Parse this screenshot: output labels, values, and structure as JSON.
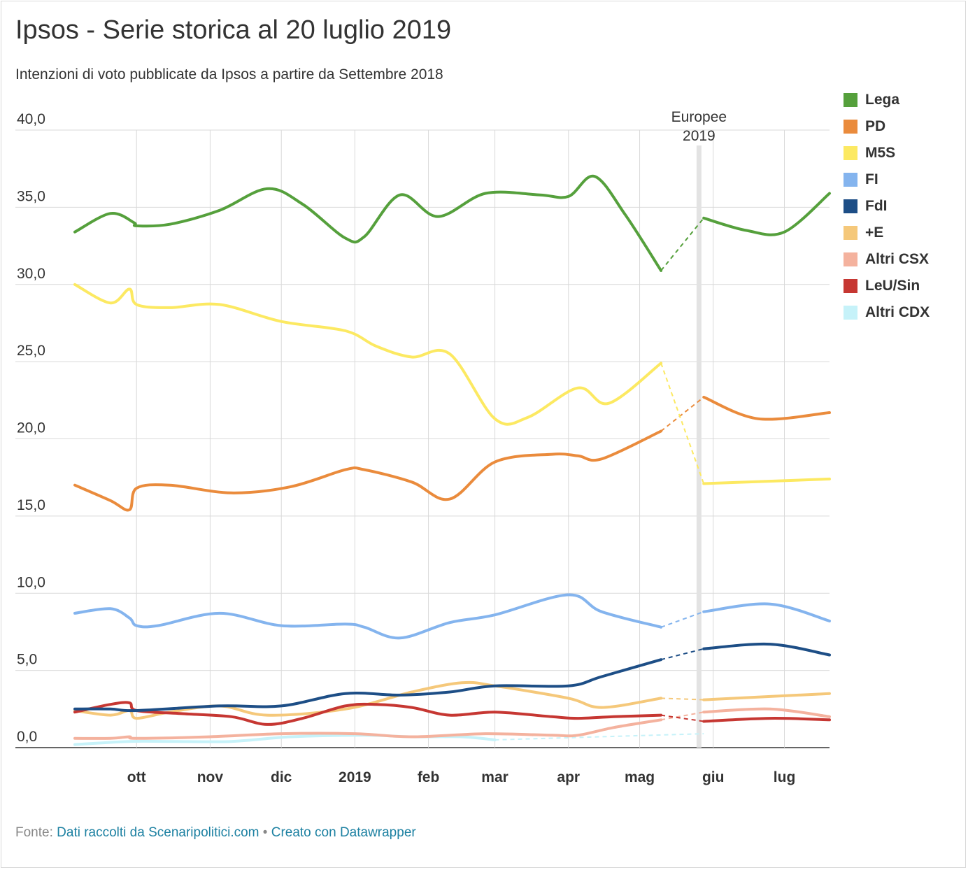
{
  "title": "Ipsos - Serie storica al 20 luglio 2019",
  "subtitle": "Intenzioni di voto pubblicate da Ipsos a partire da Settembre 2018",
  "footer": {
    "prefix": "Fonte:",
    "source_link": "Dati raccolti da Scenaripolitici.com",
    "separator": "•",
    "tool_link": "Creato con Datawrapper"
  },
  "chart_data": {
    "type": "line",
    "ylim": [
      0,
      40
    ],
    "y_ticks": [
      "40,0",
      "35,0",
      "30,0",
      "25,0",
      "20,0",
      "15,0",
      "10,0",
      "5,0",
      "0,0"
    ],
    "y_tick_values": [
      40,
      35,
      30,
      25,
      20,
      15,
      10,
      5,
      0
    ],
    "x_range": [
      "2018-09-05",
      "2019-07-20"
    ],
    "x_ticks": [
      {
        "label": "ott",
        "date": "2018-10-01"
      },
      {
        "label": "nov",
        "date": "2018-11-01"
      },
      {
        "label": "dic",
        "date": "2018-12-01"
      },
      {
        "label": "2019",
        "date": "2019-01-01"
      },
      {
        "label": "feb",
        "date": "2019-02-01"
      },
      {
        "label": "mar",
        "date": "2019-03-01"
      },
      {
        "label": "apr",
        "date": "2019-04-01"
      },
      {
        "label": "mag",
        "date": "2019-05-01"
      },
      {
        "label": "giu",
        "date": "2019-06-01"
      },
      {
        "label": "lug",
        "date": "2019-07-01"
      }
    ],
    "grid": true,
    "legend_position": "right",
    "annotation": {
      "label_line1": "Europee",
      "label_line2": "2019",
      "date": "2019-05-26"
    },
    "dashed_gap": [
      "2019-05-10",
      "2019-05-28"
    ],
    "series": [
      {
        "name": "Lega",
        "color": "#55a03c",
        "points": [
          [
            "2018-09-05",
            33.4
          ],
          [
            "2018-09-20",
            34.6
          ],
          [
            "2018-09-30",
            34.0
          ],
          [
            "2018-10-01",
            33.8
          ],
          [
            "2018-10-15",
            33.9
          ],
          [
            "2018-11-05",
            34.8
          ],
          [
            "2018-11-25",
            36.2
          ],
          [
            "2018-12-10",
            35.2
          ],
          [
            "2018-12-28",
            33.0
          ],
          [
            "2019-01-05",
            33.1
          ],
          [
            "2019-01-20",
            35.8
          ],
          [
            "2019-02-05",
            34.4
          ],
          [
            "2019-02-25",
            35.9
          ],
          [
            "2019-03-20",
            35.8
          ],
          [
            "2019-04-01",
            35.7
          ],
          [
            "2019-04-12",
            37.0
          ],
          [
            "2019-04-25",
            34.5
          ],
          [
            "2019-05-10",
            30.9
          ],
          [
            "2019-05-28",
            34.3
          ],
          [
            "2019-06-15",
            33.5
          ],
          [
            "2019-07-01",
            33.4
          ],
          [
            "2019-07-20",
            35.9
          ]
        ]
      },
      {
        "name": "PD",
        "color": "#ea8b3c",
        "points": [
          [
            "2018-09-05",
            17.0
          ],
          [
            "2018-09-20",
            16.0
          ],
          [
            "2018-09-28",
            15.4
          ],
          [
            "2018-10-01",
            16.8
          ],
          [
            "2018-10-15",
            17.0
          ],
          [
            "2018-11-10",
            16.5
          ],
          [
            "2018-12-05",
            16.9
          ],
          [
            "2018-12-28",
            18.0
          ],
          [
            "2019-01-05",
            18.0
          ],
          [
            "2019-01-25",
            17.2
          ],
          [
            "2019-02-10",
            16.1
          ],
          [
            "2019-03-01",
            18.5
          ],
          [
            "2019-03-25",
            19.0
          ],
          [
            "2019-04-05",
            18.9
          ],
          [
            "2019-04-15",
            18.7
          ],
          [
            "2019-05-10",
            20.5
          ],
          [
            "2019-05-28",
            22.7
          ],
          [
            "2019-06-20",
            21.3
          ],
          [
            "2019-07-20",
            21.7
          ]
        ]
      },
      {
        "name": "M5S",
        "color": "#fce962",
        "points": [
          [
            "2018-09-05",
            30.0
          ],
          [
            "2018-09-20",
            28.8
          ],
          [
            "2018-09-28",
            29.7
          ],
          [
            "2018-10-01",
            28.7
          ],
          [
            "2018-10-15",
            28.5
          ],
          [
            "2018-11-05",
            28.7
          ],
          [
            "2018-12-01",
            27.6
          ],
          [
            "2018-12-28",
            27.0
          ],
          [
            "2019-01-10",
            26.0
          ],
          [
            "2019-01-25",
            25.3
          ],
          [
            "2019-02-10",
            25.5
          ],
          [
            "2019-03-01",
            21.3
          ],
          [
            "2019-03-15",
            21.4
          ],
          [
            "2019-04-05",
            23.3
          ],
          [
            "2019-04-18",
            22.3
          ],
          [
            "2019-05-10",
            24.9
          ],
          [
            "2019-05-28",
            17.1
          ],
          [
            "2019-07-20",
            17.4
          ]
        ]
      },
      {
        "name": "FI",
        "color": "#84b4ee",
        "points": [
          [
            "2018-09-05",
            8.7
          ],
          [
            "2018-09-20",
            9.0
          ],
          [
            "2018-09-28",
            8.4
          ],
          [
            "2018-10-01",
            7.9
          ],
          [
            "2018-10-10",
            7.9
          ],
          [
            "2018-11-05",
            8.7
          ],
          [
            "2018-12-01",
            7.9
          ],
          [
            "2018-12-28",
            8.0
          ],
          [
            "2019-01-05",
            7.8
          ],
          [
            "2019-01-20",
            7.1
          ],
          [
            "2019-02-10",
            8.1
          ],
          [
            "2019-03-01",
            8.6
          ],
          [
            "2019-04-01",
            9.9
          ],
          [
            "2019-04-15",
            8.8
          ],
          [
            "2019-05-10",
            7.8
          ],
          [
            "2019-05-28",
            8.8
          ],
          [
            "2019-06-25",
            9.3
          ],
          [
            "2019-07-20",
            8.2
          ]
        ]
      },
      {
        "name": "FdI",
        "color": "#1d4e86",
        "points": [
          [
            "2018-09-05",
            2.5
          ],
          [
            "2018-09-20",
            2.5
          ],
          [
            "2018-10-01",
            2.4
          ],
          [
            "2018-11-05",
            2.7
          ],
          [
            "2018-12-01",
            2.7
          ],
          [
            "2018-12-28",
            3.5
          ],
          [
            "2019-01-20",
            3.4
          ],
          [
            "2019-02-10",
            3.6
          ],
          [
            "2019-03-01",
            4.0
          ],
          [
            "2019-04-01",
            4.0
          ],
          [
            "2019-04-15",
            4.6
          ],
          [
            "2019-05-10",
            5.7
          ],
          [
            "2019-05-28",
            6.4
          ],
          [
            "2019-06-25",
            6.7
          ],
          [
            "2019-07-20",
            6.0
          ]
        ]
      },
      {
        "name": "+E",
        "color": "#f5c87a",
        "points": [
          [
            "2018-09-05",
            2.4
          ],
          [
            "2018-09-20",
            2.1
          ],
          [
            "2018-09-28",
            2.4
          ],
          [
            "2018-10-01",
            1.9
          ],
          [
            "2018-10-15",
            2.3
          ],
          [
            "2018-11-05",
            2.7
          ],
          [
            "2018-11-25",
            2.1
          ],
          [
            "2018-12-28",
            2.5
          ],
          [
            "2019-01-25",
            3.6
          ],
          [
            "2019-02-15",
            4.2
          ],
          [
            "2019-03-01",
            4.0
          ],
          [
            "2019-04-01",
            3.2
          ],
          [
            "2019-04-15",
            2.6
          ],
          [
            "2019-05-10",
            3.2
          ],
          [
            "2019-05-28",
            3.1
          ],
          [
            "2019-07-20",
            3.5
          ]
        ]
      },
      {
        "name": "Altri CSX",
        "color": "#f4b29e",
        "points": [
          [
            "2018-09-05",
            0.6
          ],
          [
            "2018-09-20",
            0.6
          ],
          [
            "2018-09-28",
            0.7
          ],
          [
            "2018-10-01",
            0.6
          ],
          [
            "2018-11-01",
            0.7
          ],
          [
            "2018-12-01",
            0.9
          ],
          [
            "2019-01-01",
            0.9
          ],
          [
            "2019-01-25",
            0.7
          ],
          [
            "2019-02-25",
            0.9
          ],
          [
            "2019-03-25",
            0.8
          ],
          [
            "2019-04-05",
            0.8
          ],
          [
            "2019-04-20",
            1.3
          ],
          [
            "2019-05-10",
            1.8
          ],
          [
            "2019-05-28",
            2.3
          ],
          [
            "2019-06-25",
            2.5
          ],
          [
            "2019-07-20",
            2.0
          ]
        ]
      },
      {
        "name": "LeU/Sin",
        "color": "#c63732",
        "points": [
          [
            "2018-09-05",
            2.3
          ],
          [
            "2018-09-20",
            2.8
          ],
          [
            "2018-09-28",
            2.9
          ],
          [
            "2018-10-01",
            2.4
          ],
          [
            "2018-10-20",
            2.2
          ],
          [
            "2018-11-10",
            2.0
          ],
          [
            "2018-11-25",
            1.5
          ],
          [
            "2018-12-10",
            1.9
          ],
          [
            "2018-12-28",
            2.7
          ],
          [
            "2019-01-10",
            2.8
          ],
          [
            "2019-01-25",
            2.6
          ],
          [
            "2019-02-10",
            2.1
          ],
          [
            "2019-03-01",
            2.3
          ],
          [
            "2019-03-25",
            2.0
          ],
          [
            "2019-04-05",
            1.9
          ],
          [
            "2019-04-20",
            2.0
          ],
          [
            "2019-05-10",
            2.1
          ],
          [
            "2019-05-28",
            1.7
          ],
          [
            "2019-06-25",
            1.9
          ],
          [
            "2019-07-20",
            1.8
          ]
        ]
      },
      {
        "name": "Altri CDX",
        "color": "#c6f2f9",
        "points": [
          [
            "2018-09-05",
            0.2
          ],
          [
            "2018-09-28",
            0.4
          ],
          [
            "2018-10-15",
            0.4
          ],
          [
            "2018-11-10",
            0.4
          ],
          [
            "2018-12-05",
            0.7
          ],
          [
            "2019-01-05",
            0.8
          ],
          [
            "2019-01-25",
            0.7
          ],
          [
            "2019-02-15",
            0.7
          ],
          [
            "2019-03-01",
            0.5
          ],
          [
            "2019-05-28",
            0.9
          ]
        ]
      }
    ]
  }
}
